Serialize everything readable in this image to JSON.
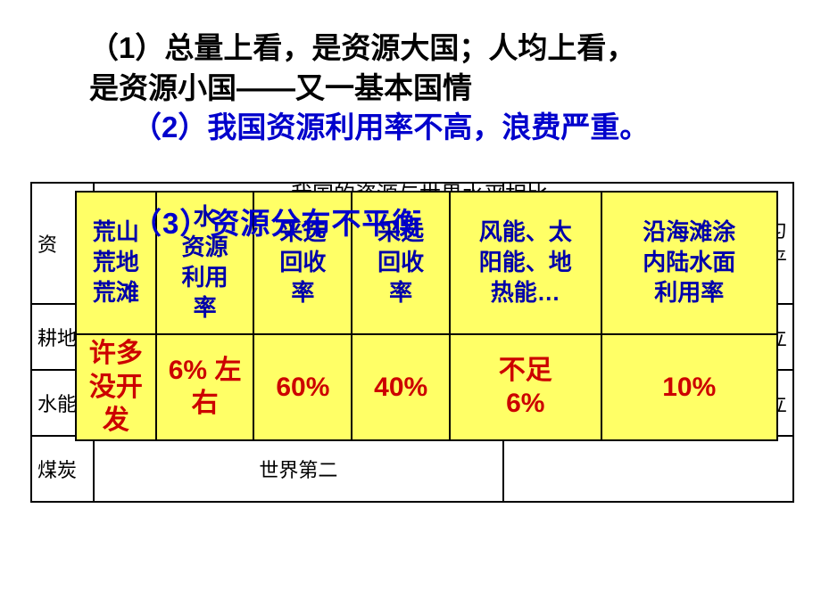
{
  "heading": {
    "line1a": "（1）总量上看，是资源大国；人均上看，",
    "line1b": "是资源小国——又一基本国情",
    "line2": "（2）我国资源利用率不高，浪费严重。",
    "line3": "（3）资源分布不平衡"
  },
  "bg_table": {
    "title_partial": "我国的资源与世界水平相比",
    "rows": {
      "r1c1": "资",
      "r1c3": "匀\n平",
      "r2c1": "耕地",
      "r2c3": "立",
      "r3c1": "水能",
      "r3c3": "立",
      "r4c1": "煤炭",
      "r4c2_partial": "世界第二",
      "r4c3": ""
    },
    "border_color": "#000000",
    "background_color": "#ffffff",
    "text_color": "#000000"
  },
  "yellow_table": {
    "background_color": "#ffff66",
    "border_color": "#000000",
    "header_text_color": "#0000aa",
    "data_text_color": "#cc0000",
    "header_fontsize": 26,
    "data_fontsize": 30,
    "columns": [
      {
        "header": "荒山\n荒地\n荒滩",
        "value": "许多\n没开\n发"
      },
      {
        "header": "水\n资源\n利用\n率",
        "value": "6% 左\n右"
      },
      {
        "header": "采选\n回收\n率",
        "value": "60%"
      },
      {
        "header": "采选\n回收\n率",
        "value": "40%"
      },
      {
        "header": "风能、太\n阳能、地\n热能…",
        "value": "不足\n6%"
      },
      {
        "header": "沿海滩涂\n内陆水面\n利用率",
        "value": "10%"
      }
    ]
  },
  "colors": {
    "black": "#000000",
    "blue": "#0000cc",
    "deep_blue": "#0000aa",
    "red": "#cc0000",
    "yellow": "#ffff66",
    "white": "#ffffff"
  }
}
